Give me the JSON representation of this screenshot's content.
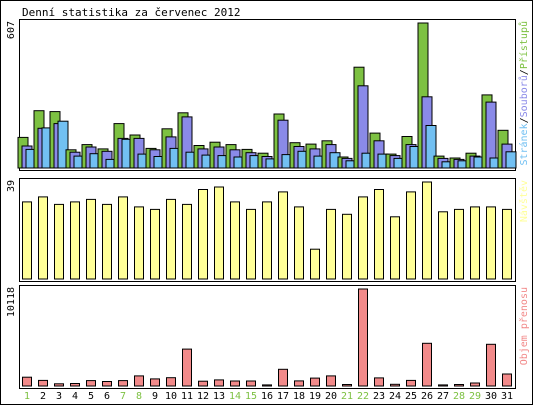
{
  "chart_data": {
    "type": "bar",
    "title": "Denní statistika za červenec 2012",
    "categories": [
      "1",
      "2",
      "3",
      "4",
      "5",
      "6",
      "7",
      "8",
      "9",
      "10",
      "11",
      "12",
      "13",
      "14",
      "15",
      "16",
      "17",
      "18",
      "19",
      "20",
      "21",
      "22",
      "23",
      "24",
      "25",
      "26",
      "27",
      "28",
      "29",
      "30",
      "31"
    ],
    "weekend_days": [
      "1",
      "7",
      "8",
      "14",
      "15",
      "21",
      "22",
      "28",
      "29"
    ],
    "panels": [
      {
        "id": "traffic",
        "max_label": "607",
        "ylim": [
          0,
          607
        ],
        "legend": {
          "prefix_1": "Stránek",
          "sep_1": "/",
          "prefix_2": "Souborů",
          "sep_2": "/",
          "prefix_3": "Přístupů"
        },
        "series": [
          {
            "name": "Přístupů",
            "color": "#7dc142",
            "values": [
              128,
              240,
              236,
              76,
              98,
              80,
              186,
              138,
              82,
              164,
              231,
              94,
              108,
              98,
              78,
              62,
              226,
              106,
              100,
              114,
              46,
              422,
              146,
              58,
              132,
              607,
              50,
              42,
              62,
              306,
              158
            ]
          },
          {
            "name": "Souborů",
            "color": "#8a8ae8",
            "values": [
              92,
              166,
              186,
              66,
              88,
              70,
              124,
              124,
              76,
              130,
              214,
              80,
              88,
              76,
              64,
              48,
              200,
              90,
              80,
              98,
              40,
              344,
              114,
              52,
              98,
              298,
              40,
              36,
              50,
              276,
              100
            ]
          },
          {
            "name": "Stránek",
            "color": "#72c0f2",
            "values": [
              78,
              168,
              196,
              50,
              60,
              36,
              120,
              58,
              48,
              82,
              66,
              54,
              52,
              46,
              52,
              38,
              56,
              70,
              50,
              64,
              30,
              62,
              58,
              40,
              90,
              178,
              26,
              30,
              46,
              42,
              68
            ]
          }
        ]
      },
      {
        "id": "visits",
        "max_label": "39",
        "label": "Návštěv",
        "ylim": [
          0,
          39
        ],
        "series": [
          {
            "name": "Návštěv",
            "color": "#ffff99",
            "values": [
              31,
              33,
              30,
              31,
              32,
              30,
              33,
              29,
              28,
              32,
              30,
              36,
              37,
              31,
              28,
              31,
              35,
              29,
              12,
              28,
              26,
              33,
              36,
              25,
              35,
              39,
              27,
              28,
              29,
              29,
              28
            ]
          }
        ]
      },
      {
        "id": "transfer",
        "max_label": "10118",
        "label": "Objem přenosu",
        "ylim": [
          0,
          10118
        ],
        "series": [
          {
            "name": "Objem přenosu",
            "color": "#f28a8a",
            "values": [
              920,
              580,
              230,
              260,
              560,
              470,
              560,
              1050,
              740,
              870,
              3850,
              500,
              640,
              520,
              520,
              110,
              1740,
              530,
              820,
              1050,
              160,
              10118,
              850,
              180,
              580,
              4450,
              110,
              160,
              310,
              4350,
              1250
            ]
          }
        ]
      }
    ]
  }
}
